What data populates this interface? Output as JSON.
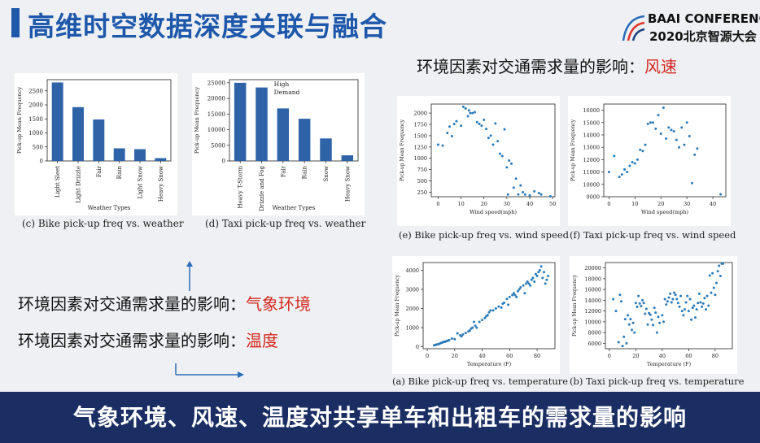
{
  "slide": {
    "title": "高维时空数据深度关联与融合",
    "logo_line1": "BAAI CONFERENCE",
    "logo_line2": "2020北京智源大会",
    "heading_wind_prefix": "环境因素对交通需求量的影响：",
    "heading_wind_highlight": "风速",
    "heading_weather_prefix": "环境因素对交通需求量的影响：",
    "heading_weather_highlight": "气象环境",
    "heading_temp_prefix": "环境因素对交通需求量的影响：",
    "heading_temp_highlight": "温度",
    "footer": "气象环境、风速、温度对共享单车和出租车的需求量的影响"
  },
  "captions": {
    "c": "(c)  Bike pick-up freq vs. weather",
    "d": "(d)  Taxi pick-up freq vs. weather",
    "e": "(e)  Bike pick-up freq vs. wind speed",
    "f": "(f)  Taxi pick-up freq vs. wind speed",
    "a": "(a)  Bike pick-up freq vs. temperature",
    "b": "(b)  Taxi pick-up freq vs. temperature"
  },
  "colors": {
    "accent": "#1e58ab",
    "highlight": "#d42a20",
    "footer_bg": "#1b2e63",
    "bar": "#2e63a8",
    "point": "#2a7ab8"
  },
  "chart_data": [
    {
      "id": "c",
      "type": "bar",
      "ylabel": "Pick-up Mean Frequency",
      "xlabel": "Weather Types",
      "categories": [
        "Light Sleet",
        "Light Drizzle",
        "Fair",
        "Rain",
        "Light Snow",
        "Heavy Snow"
      ],
      "values": [
        2800,
        1920,
        1480,
        450,
        420,
        100
      ],
      "ylim": [
        0,
        2900
      ],
      "yticks": [
        0,
        500,
        1000,
        1500,
        2000,
        2500
      ]
    },
    {
      "id": "d",
      "type": "bar",
      "ylabel": "Pick-up Mean Frequency",
      "xlabel": "Weather Types",
      "categories": [
        "Heavy T-Storm",
        "Drizzle and Fog",
        "Fair",
        "Rain",
        "Snow",
        "Heavy Snow"
      ],
      "values": [
        25000,
        23500,
        16800,
        13500,
        7200,
        1800
      ],
      "ylim": [
        0,
        26000
      ],
      "yticks": [
        0,
        5000,
        10000,
        15000,
        20000,
        25000
      ],
      "annotation": [
        "High",
        "Demand"
      ]
    },
    {
      "id": "e",
      "type": "scatter",
      "ylabel": "Pick-up Mean Frequency",
      "xlabel": "Wind speed(mph)",
      "xlim": [
        -3,
        51
      ],
      "ylim": [
        150,
        2200
      ],
      "xticks": [
        0,
        10,
        20,
        30,
        40,
        50
      ],
      "yticks": [
        250,
        500,
        750,
        1000,
        1250,
        1500,
        1750,
        2000
      ],
      "points": [
        [
          0,
          1300
        ],
        [
          2,
          1280
        ],
        [
          4,
          1560
        ],
        [
          5,
          1700
        ],
        [
          6,
          1490
        ],
        [
          7,
          1760
        ],
        [
          8,
          1820
        ],
        [
          10,
          1720
        ],
        [
          11,
          2140
        ],
        [
          12,
          2100
        ],
        [
          13,
          1930
        ],
        [
          13.5,
          2060
        ],
        [
          14,
          2000
        ],
        [
          15,
          2000
        ],
        [
          16,
          2020
        ],
        [
          17,
          1800
        ],
        [
          18,
          1760
        ],
        [
          19,
          1720
        ],
        [
          20,
          1850
        ],
        [
          21,
          1650
        ],
        [
          22,
          1450
        ],
        [
          23,
          1500
        ],
        [
          24,
          1300
        ],
        [
          25,
          1770
        ],
        [
          26,
          1380
        ],
        [
          27,
          1100
        ],
        [
          28,
          1050
        ],
        [
          29,
          1640
        ],
        [
          30,
          800
        ],
        [
          31,
          950
        ],
        [
          32,
          880
        ],
        [
          30.5,
          200
        ],
        [
          33,
          350
        ],
        [
          34,
          550
        ],
        [
          35,
          200
        ],
        [
          36,
          400
        ],
        [
          37,
          250
        ],
        [
          38,
          200
        ],
        [
          40,
          180
        ],
        [
          42,
          270
        ],
        [
          44,
          230
        ],
        [
          45,
          200
        ],
        [
          49,
          160
        ]
      ]
    },
    {
      "id": "f",
      "type": "scatter",
      "ylabel": "Pick-up Mean Frequency",
      "xlabel": "Wind speed(mph)",
      "xlim": [
        -2,
        45
      ],
      "ylim": [
        9000,
        16500
      ],
      "xticks": [
        0,
        10,
        20,
        30,
        40
      ],
      "yticks": [
        9000,
        10000,
        11000,
        12000,
        13000,
        14000,
        15000,
        16000
      ],
      "points": [
        [
          0,
          11000
        ],
        [
          2,
          12300
        ],
        [
          4,
          10600
        ],
        [
          5,
          10800
        ],
        [
          6,
          11200
        ],
        [
          7,
          11000
        ],
        [
          8,
          11500
        ],
        [
          9,
          11800
        ],
        [
          10,
          11700
        ],
        [
          11,
          12000
        ],
        [
          12,
          12800
        ],
        [
          13,
          12700
        ],
        [
          14,
          13200
        ],
        [
          15,
          14900
        ],
        [
          16,
          15000
        ],
        [
          17,
          15000
        ],
        [
          18,
          14500
        ],
        [
          19,
          15600
        ],
        [
          20,
          14100
        ],
        [
          21,
          16200
        ],
        [
          22,
          13700
        ],
        [
          23,
          14600
        ],
        [
          24,
          14400
        ],
        [
          25,
          14300
        ],
        [
          26,
          13600
        ],
        [
          27,
          13000
        ],
        [
          28,
          14600
        ],
        [
          29,
          13200
        ],
        [
          30,
          15000
        ],
        [
          31,
          13900
        ],
        [
          32,
          10100
        ],
        [
          33,
          12400
        ],
        [
          34,
          12900
        ],
        [
          43,
          9200
        ]
      ]
    },
    {
      "id": "a",
      "type": "scatter",
      "ylabel": "Pick-up Mean Frequency",
      "xlabel": "Temperature (F)",
      "xlim": [
        -3,
        93
      ],
      "ylim": [
        -100,
        4400
      ],
      "xticks": [
        0,
        20,
        40,
        60,
        80
      ],
      "yticks": [
        0,
        1000,
        2000,
        3000,
        4000
      ],
      "points": [
        [
          5,
          80
        ],
        [
          6,
          100
        ],
        [
          7,
          120
        ],
        [
          8,
          140
        ],
        [
          9,
          160
        ],
        [
          10,
          200
        ],
        [
          11,
          220
        ],
        [
          12,
          260
        ],
        [
          13,
          260
        ],
        [
          14,
          300
        ],
        [
          15,
          320
        ],
        [
          16,
          350
        ],
        [
          18,
          430
        ],
        [
          20,
          400
        ],
        [
          22,
          700
        ],
        [
          24,
          600
        ],
        [
          25,
          550
        ],
        [
          26,
          650
        ],
        [
          28,
          720
        ],
        [
          30,
          800
        ],
        [
          31,
          850
        ],
        [
          32,
          950
        ],
        [
          33,
          1000
        ],
        [
          34,
          1300
        ],
        [
          35,
          1100
        ],
        [
          36,
          1000
        ],
        [
          38,
          1300
        ],
        [
          40,
          1400
        ],
        [
          42,
          1500
        ],
        [
          43,
          1600
        ],
        [
          44,
          1650
        ],
        [
          45,
          1800
        ],
        [
          46,
          1900
        ],
        [
          48,
          1900
        ],
        [
          50,
          2000
        ],
        [
          52,
          2100
        ],
        [
          54,
          2050
        ],
        [
          55,
          2250
        ],
        [
          56,
          2300
        ],
        [
          58,
          2500
        ],
        [
          59,
          2200
        ],
        [
          60,
          2600
        ],
        [
          62,
          2700
        ],
        [
          63,
          2800
        ],
        [
          64,
          2700
        ],
        [
          65,
          2600
        ],
        [
          66,
          2900
        ],
        [
          67,
          3000
        ],
        [
          68,
          3100
        ],
        [
          70,
          3200
        ],
        [
          71,
          2800
        ],
        [
          72,
          3300
        ],
        [
          73,
          3400
        ],
        [
          74,
          3300
        ],
        [
          75,
          3200
        ],
        [
          76,
          3500
        ],
        [
          77,
          3600
        ],
        [
          78,
          3400
        ],
        [
          79,
          3800
        ],
        [
          80,
          3700
        ],
        [
          81,
          3900
        ],
        [
          82,
          4000
        ],
        [
          83,
          4200
        ],
        [
          84,
          3600
        ],
        [
          85,
          3900
        ],
        [
          86,
          3300
        ],
        [
          87,
          3500
        ],
        [
          88,
          3700
        ]
      ]
    },
    {
      "id": "b",
      "type": "scatter",
      "ylabel": "Pick-up Mean Frequency",
      "xlabel": "Temperature (F)",
      "xlim": [
        -3,
        93
      ],
      "ylim": [
        5000,
        21000
      ],
      "xticks": [
        0,
        20,
        40,
        60,
        80
      ],
      "yticks": [
        6000,
        8000,
        10000,
        12000,
        14000,
        16000,
        18000,
        20000
      ],
      "points": [
        [
          3,
          14200
        ],
        [
          5,
          12000
        ],
        [
          7,
          6200
        ],
        [
          8,
          15000
        ],
        [
          9,
          13800
        ],
        [
          10,
          5500
        ],
        [
          11,
          7200
        ],
        [
          12,
          10500
        ],
        [
          13,
          6000
        ],
        [
          14,
          11200
        ],
        [
          15,
          9500
        ],
        [
          16,
          10500
        ],
        [
          17,
          8500
        ],
        [
          18,
          9800
        ],
        [
          19,
          8000
        ],
        [
          20,
          13500
        ],
        [
          21,
          12800
        ],
        [
          22,
          14800
        ],
        [
          23,
          13400
        ],
        [
          24,
          12900
        ],
        [
          25,
          14000
        ],
        [
          26,
          13500
        ],
        [
          27,
          11500
        ],
        [
          28,
          12400
        ],
        [
          29,
          9500
        ],
        [
          30,
          11600
        ],
        [
          31,
          11300
        ],
        [
          32,
          10400
        ],
        [
          33,
          9400
        ],
        [
          34,
          12600
        ],
        [
          35,
          11700
        ],
        [
          36,
          8000
        ],
        [
          37,
          10900
        ],
        [
          38,
          9800
        ],
        [
          40,
          11200
        ],
        [
          41,
          10000
        ],
        [
          42,
          14200
        ],
        [
          43,
          13200
        ],
        [
          44,
          13800
        ],
        [
          45,
          14500
        ],
        [
          46,
          15200
        ],
        [
          47,
          13600
        ],
        [
          48,
          14200
        ],
        [
          49,
          15400
        ],
        [
          50,
          15000
        ],
        [
          51,
          14200
        ],
        [
          52,
          13500
        ],
        [
          53,
          12800
        ],
        [
          54,
          14800
        ],
        [
          55,
          12000
        ],
        [
          56,
          11200
        ],
        [
          57,
          12300
        ],
        [
          58,
          13600
        ],
        [
          59,
          14800
        ],
        [
          60,
          12000
        ],
        [
          61,
          14200
        ],
        [
          62,
          10400
        ],
        [
          63,
          12600
        ],
        [
          64,
          13000
        ],
        [
          65,
          10800
        ],
        [
          66,
          12300
        ],
        [
          67,
          13500
        ],
        [
          68,
          15200
        ],
        [
          69,
          13600
        ],
        [
          70,
          12800
        ],
        [
          71,
          13400
        ],
        [
          72,
          14400
        ],
        [
          73,
          12300
        ],
        [
          74,
          14800
        ],
        [
          75,
          13000
        ],
        [
          76,
          18600
        ],
        [
          77,
          15400
        ],
        [
          78,
          19000
        ],
        [
          79,
          16300
        ],
        [
          80,
          15000
        ],
        [
          81,
          17200
        ],
        [
          82,
          19400
        ],
        [
          83,
          20400
        ],
        [
          84,
          18500
        ],
        [
          85,
          20800
        ],
        [
          86,
          20800
        ]
      ]
    }
  ]
}
